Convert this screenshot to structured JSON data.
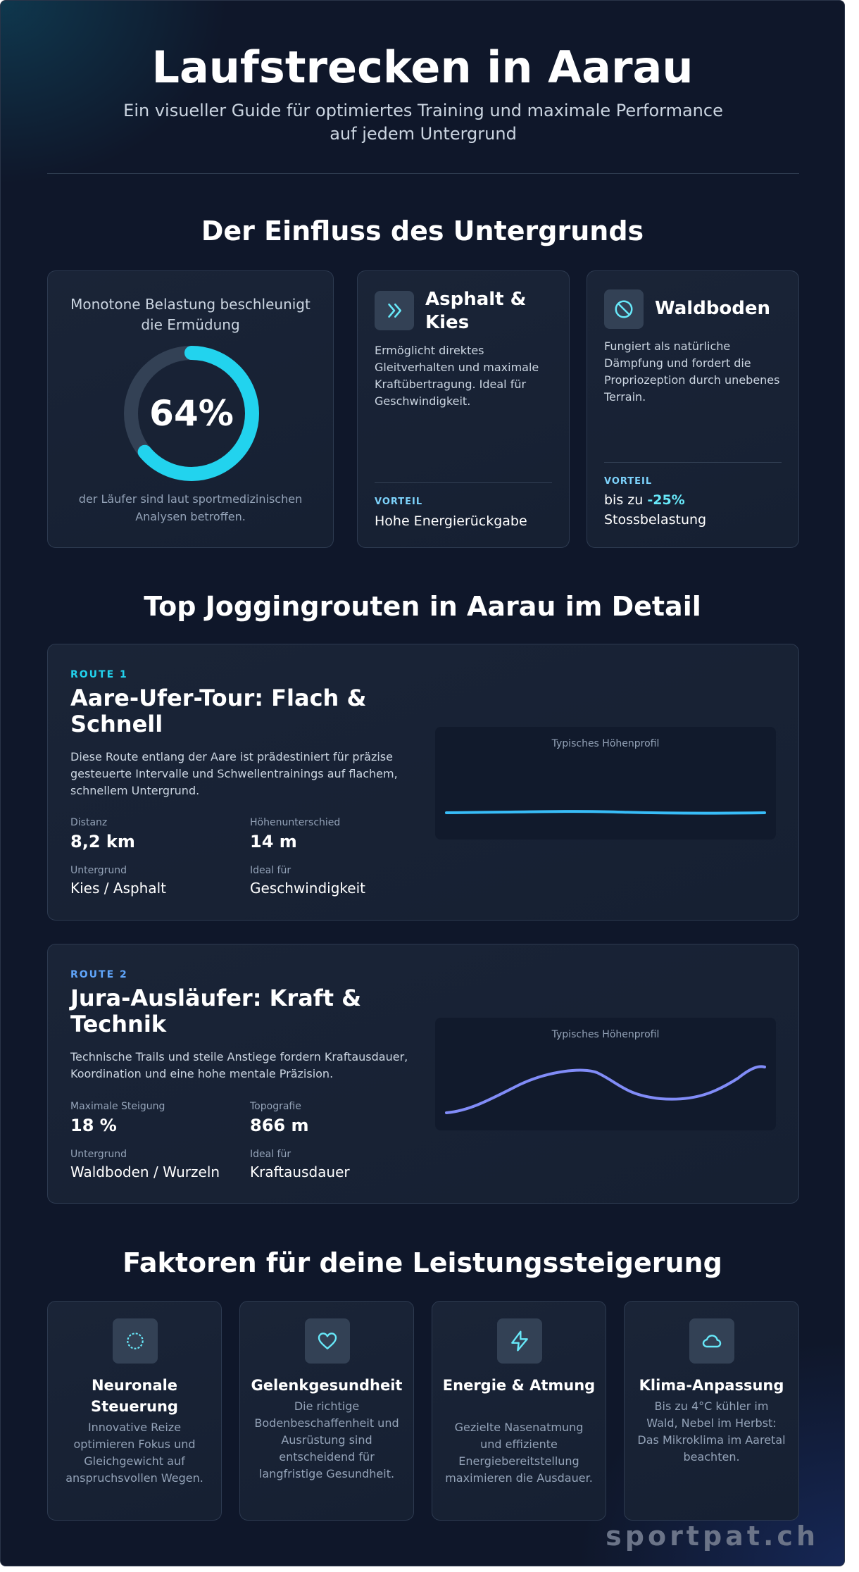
{
  "header": {
    "title": "Laufstrecken in Aarau",
    "subtitle": "Ein visueller Guide für optimiertes Training und maximale Performance auf jedem Untergrund"
  },
  "surface_section": {
    "heading": "Der Einfluss des Untergrunds",
    "stat": {
      "title": "Monotone Belastung beschleunigt die Ermüdung",
      "value_label": "64%",
      "value_fraction": 0.64,
      "caption": "der Läufer sind laut sportmedizinischen Analysen betroffen."
    },
    "asphalt": {
      "icon": "chevrons-right-icon",
      "title": "Asphalt & Kies",
      "description": "Ermöglicht direktes Gleitverhalten und maximale Kraftübertragung. Ideal für Geschwindigkeit.",
      "advantage_label": "VORTEIL",
      "advantage_value": "Hohe Energierückgabe"
    },
    "forest": {
      "icon": "ban-icon",
      "title": "Waldboden",
      "description": "Fungiert als natürliche Dämpfung und fordert die Propriozeption durch unebenes Terrain.",
      "advantage_label": "VORTEIL",
      "advantage_prefix": "bis zu",
      "advantage_highlight": "-25%",
      "advantage_suffix": "Stossbelastung"
    }
  },
  "routes_section": {
    "heading": "Top Joggingrouten in Aarau im Detail",
    "routes": [
      {
        "tag": "ROUTE 1",
        "title": "Aare-Ufer-Tour: Flach & Schnell",
        "description": "Diese Route entlang der Aare ist prädestiniert für präzise gesteuerte Intervalle und Schwellentrainings auf flachem, schnellem Untergrund.",
        "metrics": [
          {
            "label": "Distanz",
            "value": "8,2 km"
          },
          {
            "label": "Höhenunterschied",
            "value": "14 m"
          },
          {
            "label": "Untergrund",
            "value": "Kies / Asphalt"
          },
          {
            "label": "Ideal für",
            "value": "Geschwindigkeit"
          }
        ],
        "profile_label": "Typisches Höhenprofil",
        "profile_color": "#38bdf8"
      },
      {
        "tag": "ROUTE 2",
        "title": "Jura-Ausläufer: Kraft & Technik",
        "description": "Technische Trails und steile Anstiege fordern Kraftausdauer, Koordination und eine hohe mentale Präzision.",
        "metrics": [
          {
            "label": "Maximale Steigung",
            "value": "18 %"
          },
          {
            "label": "Topografie",
            "value": "866 m"
          },
          {
            "label": "Untergrund",
            "value": "Waldboden / Wurzeln"
          },
          {
            "label": "Ideal für",
            "value": "Kraftausdauer"
          }
        ],
        "profile_label": "Typisches Höhenprofil",
        "profile_color": "#818cf8"
      }
    ]
  },
  "factors_section": {
    "heading": "Faktoren für deine Leistungssteigerung",
    "factors": [
      {
        "icon": "neural-circle-icon",
        "title": "Neuronale Steuerung",
        "description": "Innovative Reize optimieren Fokus und Gleichgewicht auf anspruchsvollen Wegen."
      },
      {
        "icon": "heart-icon",
        "title": "Gelenkgesundheit",
        "description": "Die richtige Bodenbeschaffenheit und Ausrüstung sind entscheidend für langfristige Gesundheit."
      },
      {
        "icon": "lightning-icon",
        "title": "Energie & Atmung",
        "description": "Gezielte Nasenatmung und effiziente Energiebereitstellung maximieren die Ausdauer."
      },
      {
        "icon": "cloud-icon",
        "title": "Klima-Anpassung",
        "description": "Bis zu 4°C kühler im Wald, Nebel im Herbst: Das Mikroklima im Aaretal beachten."
      }
    ]
  },
  "footer": {
    "brand": "sportpat.ch"
  },
  "colors": {
    "background": "#0f172a",
    "accent_cyan": "#22d3ee",
    "accent_blue": "#38bdf8",
    "accent_indigo": "#818cf8",
    "route1_tag": "#22d3ee",
    "route2_tag": "#60a5fa"
  }
}
